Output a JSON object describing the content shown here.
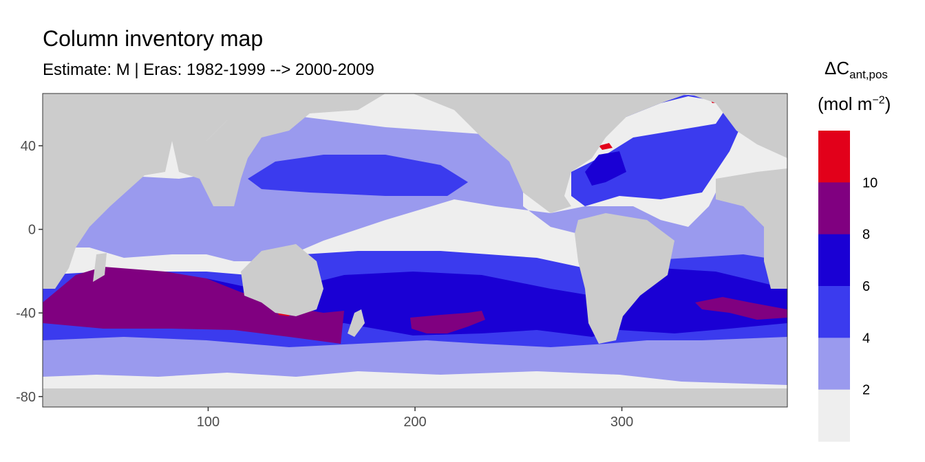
{
  "title": "Column inventory map",
  "subtitle": "Estimate: M  | Eras: 1982-1999 --> 2000-2009",
  "legend": {
    "symbol": "ΔC",
    "subscript": "ant,pos",
    "units_open": "(mol m",
    "units_exp": "−2",
    "units_close": ")",
    "breaks": [
      "2",
      "4",
      "6",
      "8",
      "10"
    ],
    "colors": [
      "#eeeeee",
      "#9a9aee",
      "#3b3bee",
      "#1a00d4",
      "#800080",
      "#e2001a"
    ]
  },
  "chart_data": {
    "type": "heatmap",
    "x_ticks": [
      100,
      200,
      300
    ],
    "y_ticks": [
      40,
      0,
      -40,
      -80
    ],
    "xlim": [
      20,
      380
    ],
    "ylim": [
      -85,
      65
    ],
    "land_color": "#cccccc",
    "bins": [
      {
        "range": "<2",
        "color": "#eeeeee"
      },
      {
        "range": "2-4",
        "color": "#9a9aee"
      },
      {
        "range": "4-6",
        "color": "#3b3bee"
      },
      {
        "range": "6-8",
        "color": "#1a00d4"
      },
      {
        "range": "8-10",
        "color": "#800080"
      },
      {
        "range": ">10",
        "color": "#e2001a"
      }
    ]
  }
}
